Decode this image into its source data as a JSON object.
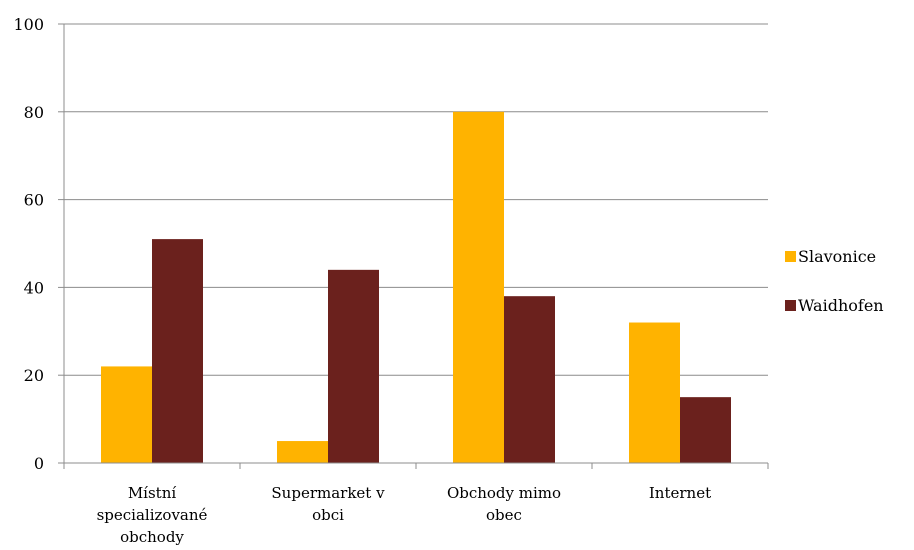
{
  "chart_data": {
    "type": "bar",
    "categories": [
      [
        "Místní",
        "specializované",
        "obchody"
      ],
      [
        "Supermarket v",
        "obci"
      ],
      [
        "Obchody mimo",
        "obec"
      ],
      [
        "Internet"
      ]
    ],
    "series": [
      {
        "name": "Slavonice",
        "color": "#FFB300",
        "values": [
          22,
          5,
          80,
          32
        ]
      },
      {
        "name": "Waidhofen",
        "color": "#6B211D",
        "values": [
          51,
          44,
          38,
          15
        ]
      }
    ],
    "ylim": [
      0,
      100
    ],
    "yticks": [
      "0",
      "20",
      "40",
      "60",
      "80",
      "100"
    ],
    "grid": true,
    "legend": "right",
    "title": "",
    "xlabel": "",
    "ylabel": ""
  }
}
